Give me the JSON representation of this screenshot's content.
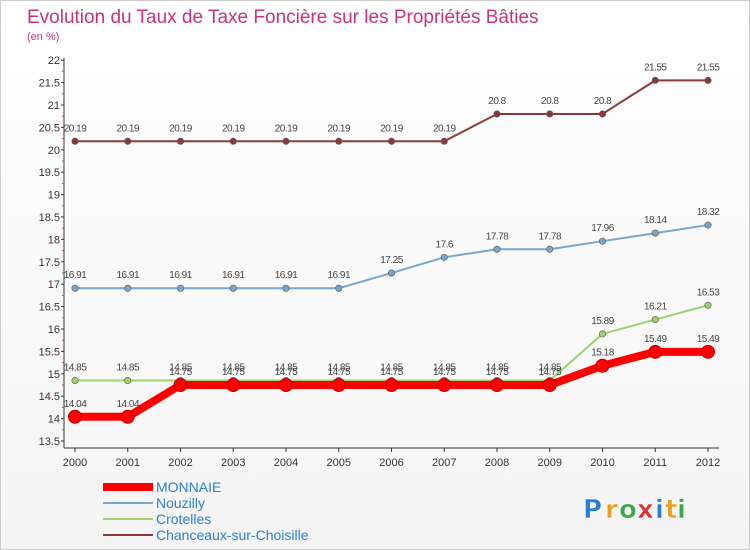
{
  "chart_data": {
    "type": "line",
    "title": "Evolution du Taux de Taxe Foncière sur les Propriétés Bâties",
    "ylabel": "(en %)",
    "xlabel": "",
    "categories": [
      "2000",
      "2001",
      "2002",
      "2003",
      "2004",
      "2005",
      "2006",
      "2007",
      "2008",
      "2009",
      "2010",
      "2011",
      "2012"
    ],
    "ylim": [
      13.5,
      22
    ],
    "yticks": [
      "13.5",
      "14",
      "14.5",
      "15",
      "15.5",
      "16",
      "16.5",
      "17",
      "17.5",
      "18",
      "18.5",
      "19",
      "19.5",
      "20",
      "20.5",
      "21",
      "21.5",
      "22"
    ],
    "series": [
      {
        "name": "MONNAIE",
        "color": "#ff0000",
        "values": [
          14.04,
          14.04,
          14.75,
          14.75,
          14.75,
          14.75,
          14.75,
          14.75,
          14.75,
          14.75,
          15.18,
          15.49,
          15.49
        ],
        "labels": [
          "14.04",
          "14.04",
          "14.75",
          "14.75",
          "14.75",
          "14.75",
          "14.75",
          "14.75",
          "14.75",
          "14.75",
          "15.18",
          "15.49",
          "15.49"
        ]
      },
      {
        "name": "Nouzilly",
        "color": "#7aa6cc",
        "values": [
          16.91,
          16.91,
          16.91,
          16.91,
          16.91,
          16.91,
          17.25,
          17.6,
          17.78,
          17.78,
          17.96,
          18.14,
          18.32
        ],
        "labels": [
          "16.91",
          "16.91",
          "16.91",
          "16.91",
          "16.91",
          "16.91",
          "17.25",
          "17.6",
          "17.78",
          "17.78",
          "17.96",
          "18.14",
          "18.32"
        ]
      },
      {
        "name": "Crotelles",
        "color": "#9cd46c",
        "values": [
          14.85,
          14.85,
          14.85,
          14.85,
          14.85,
          14.85,
          14.85,
          14.85,
          14.85,
          14.85,
          15.89,
          16.21,
          16.53
        ],
        "labels": [
          "14.85",
          "14.85",
          "14.85",
          "14.85",
          "14.85",
          "14.85",
          "14.85",
          "14.85",
          "14.85",
          "14.85",
          "15.89",
          "16.21",
          "16.53"
        ]
      },
      {
        "name": "Chanceaux-sur-Choisille",
        "color": "#8b3a3a",
        "values": [
          20.19,
          20.19,
          20.19,
          20.19,
          20.19,
          20.19,
          20.19,
          20.19,
          20.8,
          20.8,
          20.8,
          21.55,
          21.55
        ],
        "labels": [
          "20.19",
          "20.19",
          "20.19",
          "20.19",
          "20.19",
          "20.19",
          "20.19",
          "20.19",
          "20.8",
          "20.8",
          "20.8",
          "21.55",
          "21.55"
        ]
      }
    ],
    "legend_position": "bottom-left",
    "grid": false
  },
  "logo": {
    "letters": [
      "P",
      "r",
      "o",
      "x",
      "i",
      "t",
      "i"
    ],
    "colors": [
      "#2a7fd4",
      "#f0a020",
      "#3aa84a",
      "#e03030",
      "#2a7fd4",
      "#f0a020",
      "#3aa84a"
    ]
  }
}
